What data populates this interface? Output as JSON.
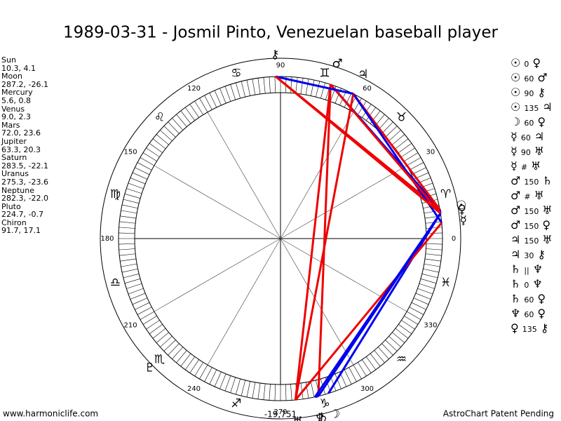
{
  "header": {
    "title": "1989-03-31 - Josmil Pinto, Venezuelan baseball player"
  },
  "planets": [
    {
      "name": "Sun",
      "coords": "10.3, 4.1",
      "glyph": "☉"
    },
    {
      "name": "Moon",
      "coords": "287.2, -26.1",
      "glyph": "☽"
    },
    {
      "name": "Mercury",
      "coords": "5.6, 0.8",
      "glyph": "☿"
    },
    {
      "name": "Venus",
      "coords": "9.0, 2.3",
      "glyph": "♀"
    },
    {
      "name": "Mars",
      "coords": "72.0, 23.6",
      "glyph": "♂"
    },
    {
      "name": "Jupiter",
      "coords": "63.3, 20.3",
      "glyph": "♃"
    },
    {
      "name": "Saturn",
      "coords": "283.5, -22.1",
      "glyph": "♄"
    },
    {
      "name": "Uranus",
      "coords": "275.3, -23.6",
      "glyph": "♅"
    },
    {
      "name": "Neptune",
      "coords": "282.3, -22.0",
      "glyph": "♆"
    },
    {
      "name": "Pluto",
      "coords": "224.7, -0.7",
      "glyph": "♇"
    },
    {
      "name": "Chiron",
      "coords": "91.7, 17.1",
      "glyph": "⚷"
    }
  ],
  "signs": [
    "♈",
    "♉",
    "♊",
    "♋",
    "♌",
    "♍",
    "♎",
    "♏",
    "♐",
    "♑",
    "♒",
    "♓"
  ],
  "degree_labels": [
    "0",
    "30",
    "60",
    "90",
    "120",
    "150",
    "180",
    "210",
    "240",
    "270",
    "300",
    "330"
  ],
  "aspects": [
    {
      "a": "☉",
      "angle": "0",
      "b": "♀"
    },
    {
      "a": "☉",
      "angle": "60",
      "b": "♂"
    },
    {
      "a": "☉",
      "angle": "90",
      "b": "⚷"
    },
    {
      "a": "☉",
      "angle": "135",
      "b": "♃"
    },
    {
      "a": "☽",
      "angle": "60",
      "b": "♀"
    },
    {
      "a": "☿",
      "angle": "60",
      "b": "♃"
    },
    {
      "a": "☿",
      "angle": "90",
      "b": "♅"
    },
    {
      "a": "☿",
      "angle": "#",
      "b": "♅"
    },
    {
      "a": "♂",
      "angle": "150",
      "b": "♄"
    },
    {
      "a": "♂",
      "angle": "#",
      "b": "♅"
    },
    {
      "a": "♂",
      "angle": "150",
      "b": "♅"
    },
    {
      "a": "♂",
      "angle": "150",
      "b": "♀"
    },
    {
      "a": "♃",
      "angle": "150",
      "b": "♅"
    },
    {
      "a": "♃",
      "angle": "30",
      "b": "⚷"
    },
    {
      "a": "♄",
      "angle": "||",
      "b": "♆"
    },
    {
      "a": "♄",
      "angle": "0",
      "b": "♆"
    },
    {
      "a": "♄",
      "angle": "60",
      "b": "♀"
    },
    {
      "a": "♆",
      "angle": "60",
      "b": "♀"
    },
    {
      "a": "♀",
      "angle": "135",
      "b": "⚷"
    }
  ],
  "bottom_label": "-19,751",
  "footer": {
    "left": "www.harmoniclife.com",
    "right": "AstroChart Patent Pending"
  }
}
